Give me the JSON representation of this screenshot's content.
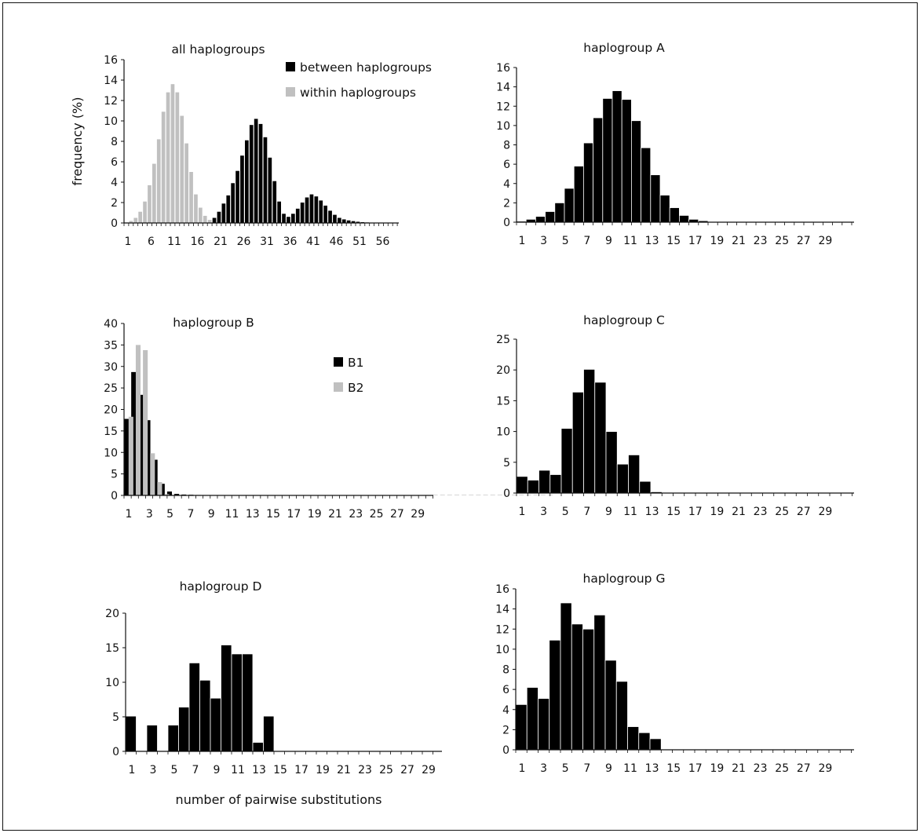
{
  "colors": {
    "between": "#000000",
    "within": "#c0c0c0",
    "axis": "#111111",
    "B1": "#000000",
    "B2": "#c0c0c0"
  },
  "chart_data": [
    {
      "id": "all",
      "type": "bar",
      "title": "all haplogroups",
      "ylabel": "frequency (%)",
      "xlabel": "",
      "ylim": [
        0,
        16
      ],
      "yticks": [
        0,
        2,
        4,
        6,
        8,
        10,
        12,
        14,
        16
      ],
      "x_tick_labels": [
        "1",
        "6",
        "11",
        "16",
        "21",
        "26",
        "31",
        "36",
        "41",
        "46",
        "51",
        "56"
      ],
      "categories": [
        1,
        2,
        3,
        4,
        5,
        6,
        7,
        8,
        9,
        10,
        11,
        12,
        13,
        14,
        15,
        16,
        17,
        18,
        19,
        20,
        21,
        22,
        23,
        24,
        25,
        26,
        27,
        28,
        29,
        30,
        31,
        32,
        33,
        34,
        35,
        36,
        37,
        38,
        39,
        40,
        41,
        42,
        43,
        44,
        45,
        46,
        47,
        48,
        49,
        50,
        51,
        52,
        53,
        54,
        55,
        56,
        57,
        58,
        59
      ],
      "legend": {
        "position": "top-right",
        "entries": [
          "between haplogroups",
          "within haplogroups"
        ]
      },
      "series": [
        {
          "name": "within haplogroups",
          "values": [
            0.05,
            0.2,
            0.5,
            1.1,
            2.1,
            3.7,
            5.8,
            8.2,
            10.9,
            12.8,
            13.6,
            12.8,
            10.5,
            7.8,
            5.0,
            2.8,
            1.5,
            0.7,
            0.3,
            0.1,
            0,
            0,
            0,
            0,
            0,
            0,
            0,
            0,
            0,
            0,
            0,
            0,
            0,
            0,
            0,
            0,
            0,
            0,
            0,
            0,
            0,
            0,
            0,
            0,
            0,
            0,
            0,
            0,
            0,
            0,
            0,
            0,
            0,
            0,
            0,
            0,
            0,
            0,
            0
          ]
        },
        {
          "name": "between haplogroups",
          "values": [
            0,
            0,
            0,
            0,
            0,
            0,
            0,
            0,
            0,
            0,
            0,
            0,
            0,
            0,
            0,
            0,
            0,
            0,
            0,
            0.5,
            1.1,
            1.9,
            2.7,
            3.9,
            5.1,
            6.6,
            8.1,
            9.6,
            10.2,
            9.7,
            8.4,
            6.4,
            4.1,
            2.1,
            0.9,
            0.6,
            0.9,
            1.4,
            2.0,
            2.5,
            2.8,
            2.6,
            2.2,
            1.7,
            1.2,
            0.8,
            0.5,
            0.35,
            0.25,
            0.18,
            0.12,
            0.08,
            0.05,
            0.03,
            0.02,
            0.01,
            0,
            0,
            0
          ]
        }
      ]
    },
    {
      "id": "A",
      "type": "bar",
      "title": "haplogroup A",
      "ylim": [
        0,
        16
      ],
      "yticks": [
        0,
        2,
        4,
        6,
        8,
        10,
        12,
        14,
        16
      ],
      "x_tick_labels": [
        "1",
        "3",
        "5",
        "7",
        "9",
        "11",
        "13",
        "15",
        "17",
        "19",
        "21",
        "23",
        "25",
        "27",
        "29"
      ],
      "categories": [
        1,
        2,
        3,
        4,
        5,
        6,
        7,
        8,
        9,
        10,
        11,
        12,
        13,
        14,
        15,
        16,
        17,
        18,
        19,
        20,
        21,
        22,
        23,
        24,
        25,
        26,
        27,
        28,
        29,
        30
      ],
      "series": [
        {
          "values": [
            0.1,
            0.3,
            0.6,
            1.1,
            2.0,
            3.5,
            5.8,
            8.2,
            10.8,
            12.8,
            13.6,
            12.7,
            10.5,
            7.7,
            4.9,
            2.8,
            1.5,
            0.7,
            0.3,
            0.15,
            0.05,
            0,
            0,
            0,
            0,
            0,
            0,
            0,
            0,
            0
          ]
        }
      ]
    },
    {
      "id": "B",
      "type": "bar",
      "title": "haplogroup B",
      "ylim": [
        0,
        40
      ],
      "yticks": [
        0,
        5,
        10,
        15,
        20,
        25,
        30,
        35,
        40
      ],
      "x_tick_labels": [
        "1",
        "3",
        "5",
        "7",
        "9",
        "11",
        "13",
        "15",
        "17",
        "19",
        "21",
        "23",
        "25",
        "27",
        "29"
      ],
      "categories": [
        1,
        2,
        3,
        4,
        5,
        6,
        7,
        8,
        9,
        10,
        11,
        12,
        13,
        14,
        15,
        16,
        17,
        18,
        19,
        20,
        21,
        22,
        23,
        24,
        25,
        26,
        27,
        28,
        29,
        30,
        31,
        32,
        33,
        34,
        35,
        36,
        37,
        38,
        39,
        40,
        41,
        42,
        43,
        44,
        45,
        46,
        47,
        48,
        49,
        50,
        51,
        52,
        53,
        54,
        55,
        56,
        57,
        58,
        59,
        60
      ],
      "legend": {
        "position": "top-right",
        "entries": [
          "B1",
          "B2"
        ]
      },
      "series": [
        {
          "name": "B1",
          "values": [
            17.8,
            28.7,
            23.4,
            17.5,
            8.3,
            2.7,
            0.9,
            0.35,
            0.2,
            0.15,
            0.1,
            0.08,
            0.06,
            0.05,
            0.05,
            0.04,
            0.04,
            0.03,
            0.03,
            0.03,
            0.03,
            0.03,
            0.03,
            0.03,
            0.03,
            0.03,
            0.03,
            0.03,
            0.03,
            0.03,
            0.03,
            0.03,
            0.03,
            0.03,
            0.03,
            0.03,
            0.03,
            0.03,
            0.03,
            0.03,
            0.03,
            0.03,
            0.03,
            0.03,
            0.03,
            0.03,
            0.03,
            0.03,
            0.03,
            0.03,
            0.03,
            0.03,
            0.03,
            0.03,
            0.03,
            0.03,
            0.03,
            0.03,
            0.03,
            0.03
          ]
        },
        {
          "name": "B2",
          "values": [
            18.3,
            35.0,
            33.8,
            9.8,
            3.1,
            0.3,
            0.1,
            0.05,
            0,
            0,
            0,
            0,
            0,
            0,
            0,
            0,
            0,
            0,
            0,
            0,
            0,
            0,
            0,
            0,
            0,
            0,
            0,
            0,
            0,
            0,
            0,
            0,
            0,
            0,
            0,
            0,
            0,
            0,
            0,
            0,
            0,
            0,
            0,
            0,
            0,
            0,
            0,
            0,
            0,
            0,
            0,
            0,
            0,
            0,
            0,
            0,
            0,
            0,
            0,
            0
          ]
        }
      ]
    },
    {
      "id": "C",
      "type": "bar",
      "title": "haplogroup C",
      "ylim": [
        0,
        25
      ],
      "yticks": [
        0,
        5,
        10,
        15,
        20,
        25
      ],
      "x_tick_labels": [
        "1",
        "3",
        "5",
        "7",
        "9",
        "11",
        "13",
        "15",
        "17",
        "19",
        "21",
        "23",
        "25",
        "27",
        "29"
      ],
      "categories": [
        1,
        2,
        3,
        4,
        5,
        6,
        7,
        8,
        9,
        10,
        11,
        12,
        13,
        14,
        15,
        16,
        17,
        18,
        19,
        20,
        21,
        22,
        23,
        24,
        25,
        26,
        27,
        28,
        29,
        30
      ],
      "series": [
        {
          "values": [
            2.7,
            2.1,
            3.7,
            3.0,
            10.5,
            16.4,
            20.1,
            18.0,
            10.0,
            4.7,
            6.2,
            1.9,
            0.2,
            0,
            0,
            0,
            0,
            0,
            0,
            0,
            0,
            0,
            0,
            0,
            0,
            0,
            0,
            0,
            0,
            0
          ]
        }
      ]
    },
    {
      "id": "D",
      "type": "bar",
      "title": "haplogroup D",
      "xlabel": "number of pairwise substitutions",
      "ylim": [
        0,
        20
      ],
      "yticks": [
        0,
        5,
        10,
        15,
        20
      ],
      "x_tick_labels": [
        "1",
        "3",
        "5",
        "7",
        "9",
        "11",
        "13",
        "15",
        "17",
        "19",
        "21",
        "23",
        "25",
        "27",
        "29"
      ],
      "categories": [
        1,
        2,
        3,
        4,
        5,
        6,
        7,
        8,
        9,
        10,
        11,
        12,
        13,
        14,
        15,
        16,
        17,
        18,
        19,
        20,
        21,
        22,
        23,
        24,
        25,
        26,
        27,
        28,
        29,
        30
      ],
      "series": [
        {
          "values": [
            5.1,
            0,
            3.8,
            0,
            3.8,
            6.4,
            12.8,
            10.3,
            7.7,
            15.4,
            14.1,
            14.1,
            1.3,
            5.1,
            0,
            0,
            0,
            0,
            0,
            0,
            0,
            0,
            0,
            0,
            0,
            0,
            0,
            0,
            0,
            0
          ]
        }
      ]
    },
    {
      "id": "G",
      "type": "bar",
      "title": "haplogroup G",
      "ylim": [
        0,
        16
      ],
      "yticks": [
        0,
        2,
        4,
        6,
        8,
        10,
        12,
        14,
        16
      ],
      "x_tick_labels": [
        "1",
        "3",
        "5",
        "7",
        "9",
        "11",
        "13",
        "15",
        "17",
        "19",
        "21",
        "23",
        "25",
        "27",
        "29"
      ],
      "categories": [
        1,
        2,
        3,
        4,
        5,
        6,
        7,
        8,
        9,
        10,
        11,
        12,
        13,
        14,
        15,
        16,
        17,
        18,
        19,
        20,
        21,
        22,
        23,
        24,
        25,
        26,
        27,
        28,
        29,
        30
      ],
      "series": [
        {
          "values": [
            4.5,
            6.2,
            5.1,
            10.9,
            14.6,
            12.5,
            12.0,
            13.4,
            8.9,
            6.8,
            2.3,
            1.7,
            1.1,
            0,
            0,
            0,
            0,
            0,
            0,
            0,
            0,
            0,
            0,
            0,
            0,
            0,
            0,
            0,
            0,
            0
          ]
        }
      ]
    }
  ]
}
